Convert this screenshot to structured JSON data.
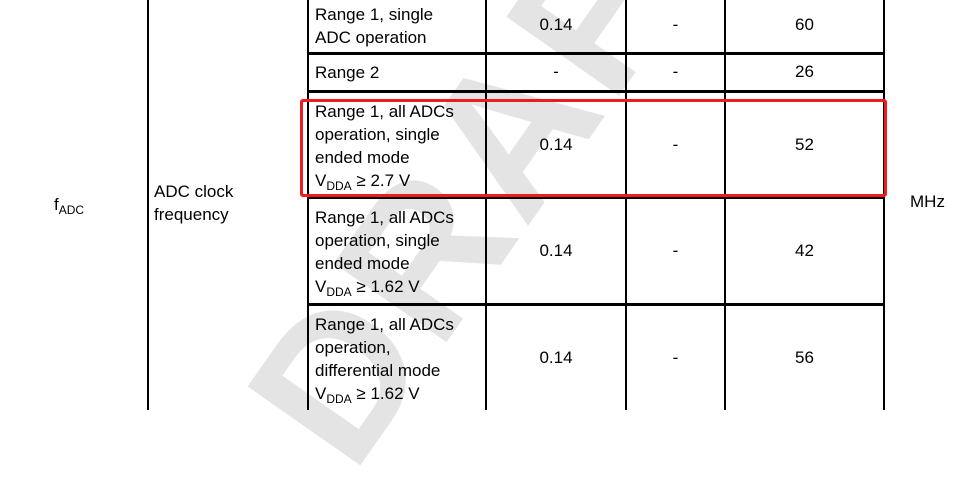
{
  "watermark": "DRAFT",
  "symbol": {
    "base": "f",
    "sub": "ADC"
  },
  "parameter": "ADC clock frequency",
  "unit": "MHz",
  "rows": [
    {
      "conditions": [
        "Range 1, single",
        "ADC operation"
      ],
      "vdda": null,
      "min": "0.14",
      "typ": "-",
      "max": "60"
    },
    {
      "conditions": [
        "Range 2"
      ],
      "vdda": null,
      "min": "-",
      "typ": "-",
      "max": "26"
    },
    {
      "conditions": [
        "Range 1, all ADCs",
        "operation, single",
        "ended mode"
      ],
      "vdda": {
        "v": "V",
        "sub": "DDA",
        "rest": " ≥ 2.7 V"
      },
      "min": "0.14",
      "typ": "-",
      "max": "52",
      "highlighted": true
    },
    {
      "conditions": [
        "Range 1, all ADCs",
        "operation, single",
        "ended mode"
      ],
      "vdda": {
        "v": "V",
        "sub": "DDA",
        "rest": " ≥ 1.62 V"
      },
      "min": "0.14",
      "typ": "-",
      "max": "42"
    },
    {
      "conditions": [
        "Range 1, all ADCs",
        "operation,",
        "differential mode"
      ],
      "vdda": {
        "v": "V",
        "sub": "DDA",
        "rest": " ≥ 1.62 V"
      },
      "min": "0.14",
      "typ": "-",
      "max": "56"
    }
  ],
  "highlight_color": "#ee1c1c"
}
